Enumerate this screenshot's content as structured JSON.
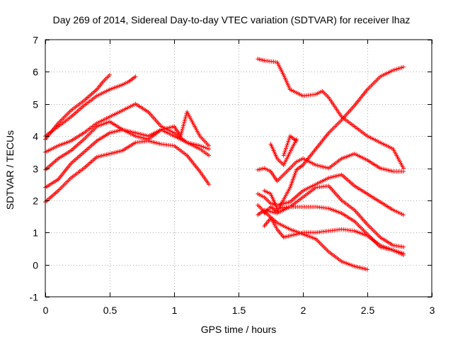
{
  "chart_data": {
    "type": "scatter",
    "title": "Day 269 of 2014, Sidereal Day-to-day VTEC variation (SDTVAR) for receiver lhaz",
    "xlabel": "GPS time / hours",
    "ylabel": "SDTVAR / TECUs",
    "xlim": [
      0,
      3
    ],
    "ylim": [
      -1,
      7
    ],
    "x_ticks": [
      "0",
      "0.5",
      "1",
      "1.5",
      "2",
      "2.5",
      "3"
    ],
    "x_tick_values": [
      0,
      0.5,
      1,
      1.5,
      2,
      2.5,
      3
    ],
    "y_ticks": [
      "-1",
      "0",
      "1",
      "2",
      "3",
      "4",
      "5",
      "6",
      "7"
    ],
    "y_tick_values": [
      -1,
      0,
      1,
      2,
      3,
      4,
      5,
      6,
      7
    ],
    "grid": true,
    "marker": "plus",
    "marker_color": "#ff0000",
    "series": [
      {
        "name": "s1",
        "x": [
          0.0,
          0.1,
          0.2,
          0.3,
          0.4,
          0.45,
          0.5
        ],
        "y": [
          3.9,
          4.4,
          4.8,
          5.1,
          5.45,
          5.7,
          5.9
        ]
      },
      {
        "name": "s2",
        "x": [
          0.0,
          0.1,
          0.2,
          0.3,
          0.4,
          0.5,
          0.6,
          0.65,
          0.7
        ],
        "y": [
          4.0,
          4.3,
          4.6,
          4.95,
          5.25,
          5.45,
          5.6,
          5.7,
          5.85
        ]
      },
      {
        "name": "s3",
        "x": [
          0.0,
          0.1,
          0.2,
          0.3,
          0.4,
          0.5,
          0.6,
          0.7,
          0.8,
          0.9,
          1.0,
          1.1,
          1.2,
          1.27
        ],
        "y": [
          3.5,
          3.7,
          3.85,
          4.1,
          4.4,
          4.6,
          4.8,
          5.0,
          4.75,
          4.3,
          4.1,
          3.8,
          3.7,
          3.6
        ]
      },
      {
        "name": "s4",
        "x": [
          0.0,
          0.1,
          0.2,
          0.3,
          0.4,
          0.5,
          0.6,
          0.7,
          0.8,
          0.9,
          1.0,
          1.1,
          1.2,
          1.27
        ],
        "y": [
          2.95,
          3.3,
          3.55,
          3.9,
          4.3,
          4.45,
          4.2,
          4.1,
          4.0,
          4.2,
          4.0,
          3.8,
          3.6,
          3.4
        ]
      },
      {
        "name": "s5",
        "x": [
          0.0,
          0.1,
          0.2,
          0.3,
          0.4,
          0.5,
          0.6,
          0.7,
          0.8,
          0.9,
          1.0,
          1.05,
          1.1,
          1.2,
          1.27
        ],
        "y": [
          2.4,
          2.65,
          3.15,
          3.5,
          3.85,
          4.1,
          4.2,
          4.0,
          3.9,
          4.2,
          4.3,
          4.0,
          4.75,
          4.0,
          3.7
        ]
      },
      {
        "name": "s6",
        "x": [
          0.0,
          0.1,
          0.2,
          0.3,
          0.4,
          0.5,
          0.6,
          0.7,
          0.8,
          0.9,
          1.0,
          1.1,
          1.2,
          1.27
        ],
        "y": [
          1.95,
          2.3,
          2.7,
          3.0,
          3.35,
          3.45,
          3.55,
          3.8,
          3.85,
          3.75,
          3.7,
          3.4,
          2.9,
          2.5
        ]
      },
      {
        "name": "s7",
        "x": [
          1.65,
          1.7,
          1.8,
          1.85,
          1.9,
          2.0,
          2.1,
          2.15,
          2.2,
          2.3,
          2.4,
          2.5,
          2.6,
          2.7,
          2.78
        ],
        "y": [
          6.4,
          6.35,
          6.3,
          5.9,
          5.45,
          5.25,
          5.3,
          5.4,
          5.2,
          4.6,
          4.3,
          4.0,
          3.8,
          3.6,
          3.0
        ]
      },
      {
        "name": "s8",
        "x": [
          1.65,
          1.7,
          1.75,
          1.8,
          1.9,
          1.95,
          2.0,
          2.1,
          2.2,
          2.3,
          2.4,
          2.5,
          2.6,
          2.7,
          2.78
        ],
        "y": [
          2.95,
          3.0,
          2.9,
          2.6,
          3.0,
          3.2,
          3.3,
          3.1,
          3.0,
          3.3,
          3.45,
          3.25,
          3.0,
          2.9,
          2.9
        ]
      },
      {
        "name": "s9",
        "x": [
          1.7,
          1.75,
          1.8,
          1.9,
          1.95,
          2.0,
          2.1,
          2.2,
          2.3,
          2.4,
          2.5,
          2.6,
          2.7,
          2.78
        ],
        "y": [
          1.6,
          1.8,
          1.65,
          2.4,
          2.95,
          3.1,
          3.6,
          4.1,
          4.5,
          4.95,
          5.45,
          5.85,
          6.05,
          6.15
        ]
      },
      {
        "name": "s10",
        "x": [
          1.65,
          1.7,
          1.75,
          1.8,
          1.9,
          2.0,
          2.1,
          2.2,
          2.3,
          2.4,
          2.5,
          2.6,
          2.7,
          2.78
        ],
        "y": [
          2.2,
          2.1,
          1.9,
          1.85,
          1.95,
          2.3,
          2.5,
          2.7,
          2.8,
          2.45,
          2.2,
          1.95,
          1.7,
          1.55
        ]
      },
      {
        "name": "s11",
        "x": [
          1.65,
          1.7,
          1.8,
          1.9,
          2.0,
          2.1,
          2.2,
          2.3,
          2.4,
          2.5,
          2.6,
          2.7,
          2.78
        ],
        "y": [
          1.55,
          1.7,
          1.6,
          1.8,
          2.1,
          2.4,
          2.45,
          2.0,
          1.7,
          1.25,
          0.85,
          0.6,
          0.55
        ]
      },
      {
        "name": "s12",
        "x": [
          1.7,
          1.75,
          1.8,
          1.9,
          2.0,
          2.1,
          2.2,
          2.3,
          2.4,
          2.5,
          2.6,
          2.7,
          2.78
        ],
        "y": [
          2.3,
          2.2,
          1.75,
          1.8,
          1.8,
          1.8,
          1.75,
          1.6,
          1.35,
          0.95,
          0.55,
          0.45,
          0.35
        ]
      },
      {
        "name": "s13",
        "x": [
          1.7,
          1.75,
          1.8,
          1.85,
          1.9,
          2.0,
          2.1,
          2.2,
          2.3,
          2.4,
          2.5,
          2.6,
          2.7,
          2.78
        ],
        "y": [
          1.2,
          1.45,
          1.1,
          0.85,
          0.9,
          1.0,
          1.0,
          1.05,
          1.1,
          1.05,
          0.9,
          0.6,
          0.45,
          0.3
        ]
      },
      {
        "name": "s14",
        "x": [
          1.65,
          1.7,
          1.8,
          1.9,
          2.0,
          2.1,
          2.2,
          2.3,
          2.4,
          2.45,
          2.5
        ],
        "y": [
          1.85,
          1.65,
          1.3,
          1.1,
          0.95,
          0.8,
          0.4,
          0.1,
          -0.05,
          -0.1,
          -0.15
        ]
      },
      {
        "name": "s15",
        "x": [
          1.75,
          1.8,
          1.85,
          1.9,
          1.95
        ],
        "y": [
          3.75,
          3.3,
          3.1,
          3.5,
          3.9
        ]
      },
      {
        "name": "s16",
        "x": [
          1.85,
          1.9,
          1.95
        ],
        "y": [
          3.4,
          4.0,
          3.85
        ]
      }
    ]
  }
}
